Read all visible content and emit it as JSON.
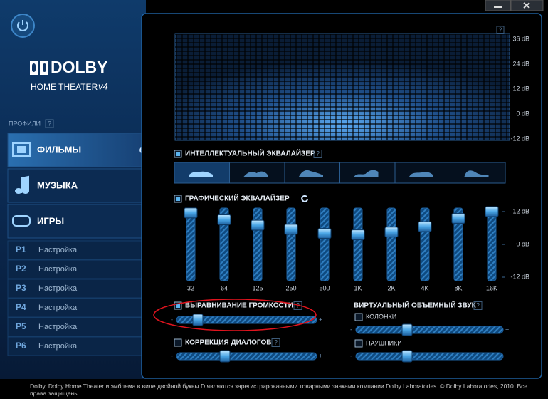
{
  "window": {
    "profiles_label": "ПРОФИЛИ",
    "help": "?"
  },
  "brand": {
    "logo": "DOLBY",
    "product": "HOME THEATER",
    "version": "v4"
  },
  "profiles": [
    {
      "name": "ФИЛЬМЫ",
      "selected": true
    },
    {
      "name": "МУЗЫКА",
      "selected": false
    },
    {
      "name": "ИГРЫ",
      "selected": false
    }
  ],
  "presets": [
    {
      "id": "P1",
      "label": "Настройка"
    },
    {
      "id": "P2",
      "label": "Настройка"
    },
    {
      "id": "P3",
      "label": "Настройка"
    },
    {
      "id": "P4",
      "label": "Настройка"
    },
    {
      "id": "P5",
      "label": "Настройка"
    },
    {
      "id": "P6",
      "label": "Настройка"
    }
  ],
  "visualizer": {
    "scale": [
      "36 dB",
      "24 dB",
      "12 dB",
      "0 dB",
      "-12 dB"
    ]
  },
  "intelligent_eq": {
    "label": "ИНТЕЛЛЕКТУАЛЬНЫЙ ЭКВАЛАЙЗЕР",
    "checked": true
  },
  "graphic_eq": {
    "label": "ГРАФИЧЕСКИЙ ЭКВАЛАЙЗЕР",
    "checked": true,
    "range": [
      -12,
      12
    ],
    "scale": [
      {
        "value": 12,
        "label": "12 dB"
      },
      {
        "value": 0,
        "label": "0 dB"
      },
      {
        "value": -12,
        "label": "-12 dB"
      }
    ],
    "bands": [
      "32",
      "64",
      "125",
      "250",
      "500",
      "1K",
      "2K",
      "4K",
      "8K",
      "16K"
    ],
    "values": [
      11.5,
      9,
      7,
      5.5,
      4,
      3.5,
      4.5,
      6.5,
      9.5,
      12
    ]
  },
  "volume_leveler": {
    "label": "ВЫРАВНИВАНИЕ ГРОМКОСТИ",
    "checked": true
  },
  "dialog_enhancer": {
    "label": "КОРРЕКЦИЯ ДИАЛОГОВ",
    "checked": false
  },
  "surround": {
    "label": "ВИРТУАЛЬНЫЙ ОБЪЕМНЫЙ ЗВУК",
    "speakers": {
      "label": "КОЛОНКИ",
      "checked": false
    },
    "headphones": {
      "label": "НАУШНИКИ",
      "checked": false
    }
  },
  "slider_signs": {
    "minus": "-",
    "plus": "+"
  },
  "footer": "Dolby, Dolby Home Theater и эмблема в виде двойной буквы D являются зарегистрированными товарными знаками компании Dolby Laboratories. © Dolby Laboratories, 2010. Все права защищены."
}
